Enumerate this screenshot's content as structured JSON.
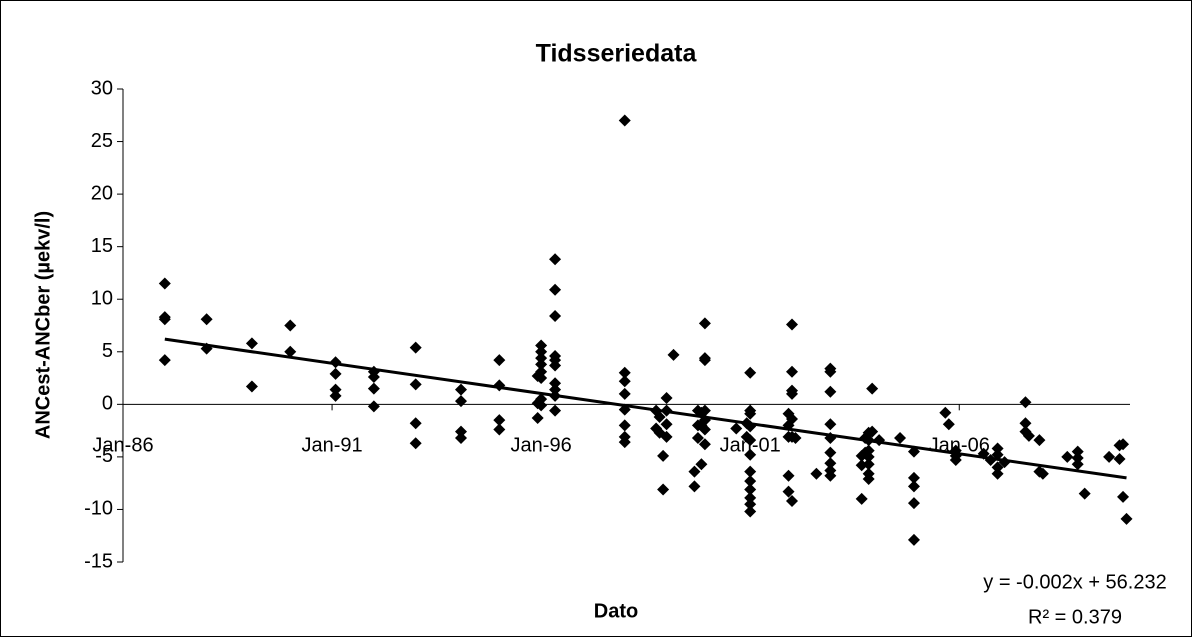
{
  "chart_data": {
    "type": "scatter",
    "title": "Tidsseriedata",
    "x_label": "Dato",
    "y_label": "ANCest-ANCber (µekv/l)",
    "color": "#000000",
    "xlim": [
      "1986-01",
      "2010-02"
    ],
    "xticks": [
      {
        "value": "1986-01",
        "label": "Jan-86"
      },
      {
        "value": "1991-01",
        "label": "Jan-91"
      },
      {
        "value": "1996-01",
        "label": "Jan-96"
      },
      {
        "value": "2001-01",
        "label": "Jan-01"
      },
      {
        "value": "2006-01",
        "label": "Jan-06"
      }
    ],
    "ylim": [
      -15,
      30
    ],
    "yticks": [
      -15,
      -10,
      -5,
      0,
      5,
      10,
      15,
      20,
      25,
      30
    ],
    "x": [
      "1987-01",
      "1987-01",
      "1987-01",
      "1987-01",
      "1988-01",
      "1988-01",
      "1989-02",
      "1989-02",
      "1990-01",
      "1990-01",
      "1991-02",
      "1991-02",
      "1991-02",
      "1991-02",
      "1992-01",
      "1992-01",
      "1992-01",
      "1992-01",
      "1993-01",
      "1993-01",
      "1993-01",
      "1993-01",
      "1994-02",
      "1994-02",
      "1994-02",
      "1994-02",
      "1995-01",
      "1995-01",
      "1995-01",
      "1995-01",
      "1995-12",
      "1995-12",
      "1995-12",
      "1996-01",
      "1996-01",
      "1996-01",
      "1996-01",
      "1996-01",
      "1996-01",
      "1996-01",
      "1996-01",
      "1996-05",
      "1996-05",
      "1996-05",
      "1996-05",
      "1996-05",
      "1996-05",
      "1996-05",
      "1996-05",
      "1996-05",
      "1996-05",
      "1998-01",
      "1998-01",
      "1998-01",
      "1998-01",
      "1998-01",
      "1998-01",
      "1998-01",
      "1998-01",
      "1998-10",
      "1998-10",
      "1998-11",
      "1998-11",
      "1998-12",
      "1998-12",
      "1999-01",
      "1999-01",
      "1999-01",
      "1999-01",
      "1999-03",
      "1999-09",
      "1999-09",
      "1999-10",
      "1999-10",
      "1999-10",
      "1999-11",
      "1999-11",
      "1999-11",
      "1999-12",
      "1999-12",
      "1999-12",
      "1999-12",
      "1999-12",
      "1999-12",
      "1999-12",
      "2000-09",
      "2000-12",
      "2000-12",
      "2001-01",
      "2001-01",
      "2001-01",
      "2001-01",
      "2001-01",
      "2001-01",
      "2001-01",
      "2001-01",
      "2001-01",
      "2001-01",
      "2001-01",
      "2001-01",
      "2001-12",
      "2001-12",
      "2001-12",
      "2001-12",
      "2001-12",
      "2002-01",
      "2002-01",
      "2002-01",
      "2002-01",
      "2002-01",
      "2002-01",
      "2002-01",
      "2002-02",
      "2002-08",
      "2002-12",
      "2002-12",
      "2002-12",
      "2002-12",
      "2002-12",
      "2002-12",
      "2002-12",
      "2002-12",
      "2002-12",
      "2003-09",
      "2003-09",
      "2003-09",
      "2003-10",
      "2003-10",
      "2003-11",
      "2003-11",
      "2003-11",
      "2003-11",
      "2003-11",
      "2003-11",
      "2003-11",
      "2003-12",
      "2003-12",
      "2004-02",
      "2004-08",
      "2004-12",
      "2004-12",
      "2004-12",
      "2004-12",
      "2004-12",
      "2005-09",
      "2005-10",
      "2005-12",
      "2005-12",
      "2005-12",
      "2006-08",
      "2006-10",
      "2006-12",
      "2006-12",
      "2006-12",
      "2006-12",
      "2007-02",
      "2007-08",
      "2007-08",
      "2007-08",
      "2007-09",
      "2007-12",
      "2007-12",
      "2008-01",
      "2008-08",
      "2008-11",
      "2008-11",
      "2008-11",
      "2009-01",
      "2009-08",
      "2009-11",
      "2009-11",
      "2009-12",
      "2009-12",
      "2010-01"
    ],
    "values": [
      11.5,
      8.3,
      8.1,
      4.2,
      8.1,
      5.3,
      5.8,
      1.7,
      7.5,
      5.0,
      4.0,
      2.9,
      1.4,
      0.8,
      3.1,
      2.6,
      1.5,
      -0.2,
      5.4,
      1.9,
      -1.8,
      -3.7,
      1.4,
      0.3,
      -2.6,
      -3.2,
      4.2,
      1.8,
      -1.5,
      -2.4,
      2.7,
      0.1,
      -1.3,
      5.6,
      5.0,
      4.4,
      3.8,
      3.1,
      2.5,
      0.5,
      -0.1,
      13.8,
      10.9,
      8.4,
      4.6,
      4.2,
      3.7,
      2.0,
      1.4,
      0.8,
      -0.6,
      27.0,
      3.0,
      2.2,
      1.0,
      -0.5,
      -2.0,
      -3.1,
      -3.6,
      -2.3,
      -0.6,
      -1.2,
      -2.7,
      -4.9,
      -8.1,
      0.6,
      -0.6,
      -1.9,
      -3.1,
      4.7,
      -6.4,
      -7.8,
      -0.6,
      -2.0,
      -3.2,
      -2.0,
      -0.8,
      -5.7,
      7.7,
      4.4,
      4.2,
      -0.6,
      -1.5,
      -2.4,
      -3.8,
      -2.3,
      -1.8,
      -3.1,
      3.0,
      -0.6,
      -0.9,
      -2.1,
      -3.4,
      -4.8,
      -6.4,
      -7.3,
      -8.1,
      -8.9,
      -9.5,
      -10.2,
      -0.9,
      -2.0,
      -3.1,
      -6.8,
      -8.3,
      7.6,
      3.1,
      1.3,
      1.0,
      -1.4,
      -3.1,
      -9.2,
      -3.2,
      -6.6,
      3.4,
      3.1,
      1.2,
      -1.9,
      -3.2,
      -4.6,
      -5.6,
      -6.3,
      -6.8,
      -4.9,
      -5.8,
      -9.0,
      -3.2,
      -4.6,
      -2.7,
      -3.4,
      -4.4,
      -5.0,
      -5.7,
      -6.6,
      -7.1,
      1.5,
      -2.6,
      -3.4,
      -3.2,
      -4.5,
      -7.0,
      -7.8,
      -9.4,
      -12.9,
      -0.8,
      -1.9,
      -4.4,
      -4.9,
      -5.3,
      -4.7,
      -5.3,
      -4.2,
      -4.8,
      -6.0,
      -6.6,
      -5.5,
      0.2,
      -1.8,
      -2.6,
      -3.0,
      -3.4,
      -6.4,
      -6.6,
      -5.0,
      -4.5,
      -5.1,
      -5.7,
      -8.5,
      -5.0,
      -3.9,
      -5.2,
      -3.8,
      -8.8,
      -10.9
    ],
    "trendline": {
      "x": [
        "1987-01",
        "2010-01"
      ],
      "values": [
        6.2,
        -7.0
      ],
      "equation": "y = -0.002x + 56.232",
      "r_squared": "R² = 0.379"
    }
  }
}
